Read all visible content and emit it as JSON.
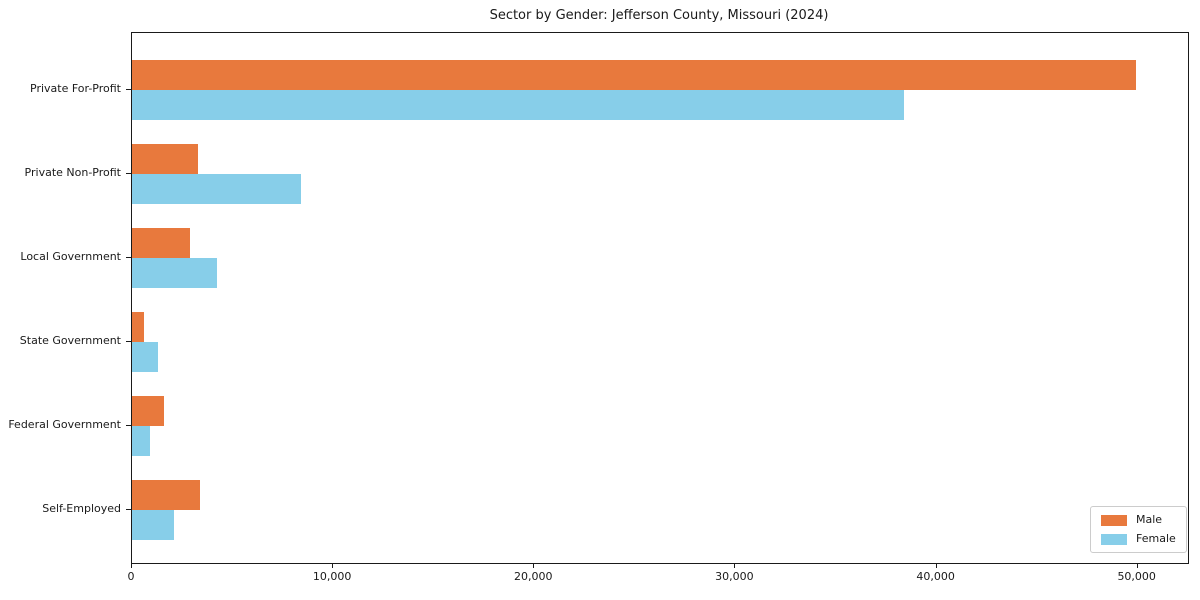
{
  "chart_data": {
    "type": "bar",
    "orientation": "horizontal",
    "title": "Sector by Gender: Jefferson County, Missouri (2024)",
    "xlabel": "",
    "ylabel": "",
    "categories": [
      "Private For-Profit",
      "Private Non-Profit",
      "Local Government",
      "State Government",
      "Federal Government",
      "Self-Employed"
    ],
    "series": [
      {
        "name": "Male",
        "color": "#e8793d",
        "values": [
          49900,
          3300,
          2900,
          600,
          1600,
          3400
        ]
      },
      {
        "name": "Female",
        "color": "#87cee9",
        "values": [
          38400,
          8400,
          4200,
          1300,
          900,
          2100
        ]
      }
    ],
    "x_ticks": [
      0,
      10000,
      20000,
      30000,
      40000,
      50000
    ],
    "x_tick_labels": [
      "0",
      "10,000",
      "20,000",
      "30,000",
      "40,000",
      "50,000"
    ],
    "xlim": [
      0,
      52500
    ],
    "grid": false,
    "legend_position": "lower right",
    "frame_color": "#1a1a1a",
    "background_color": "#ffffff"
  }
}
